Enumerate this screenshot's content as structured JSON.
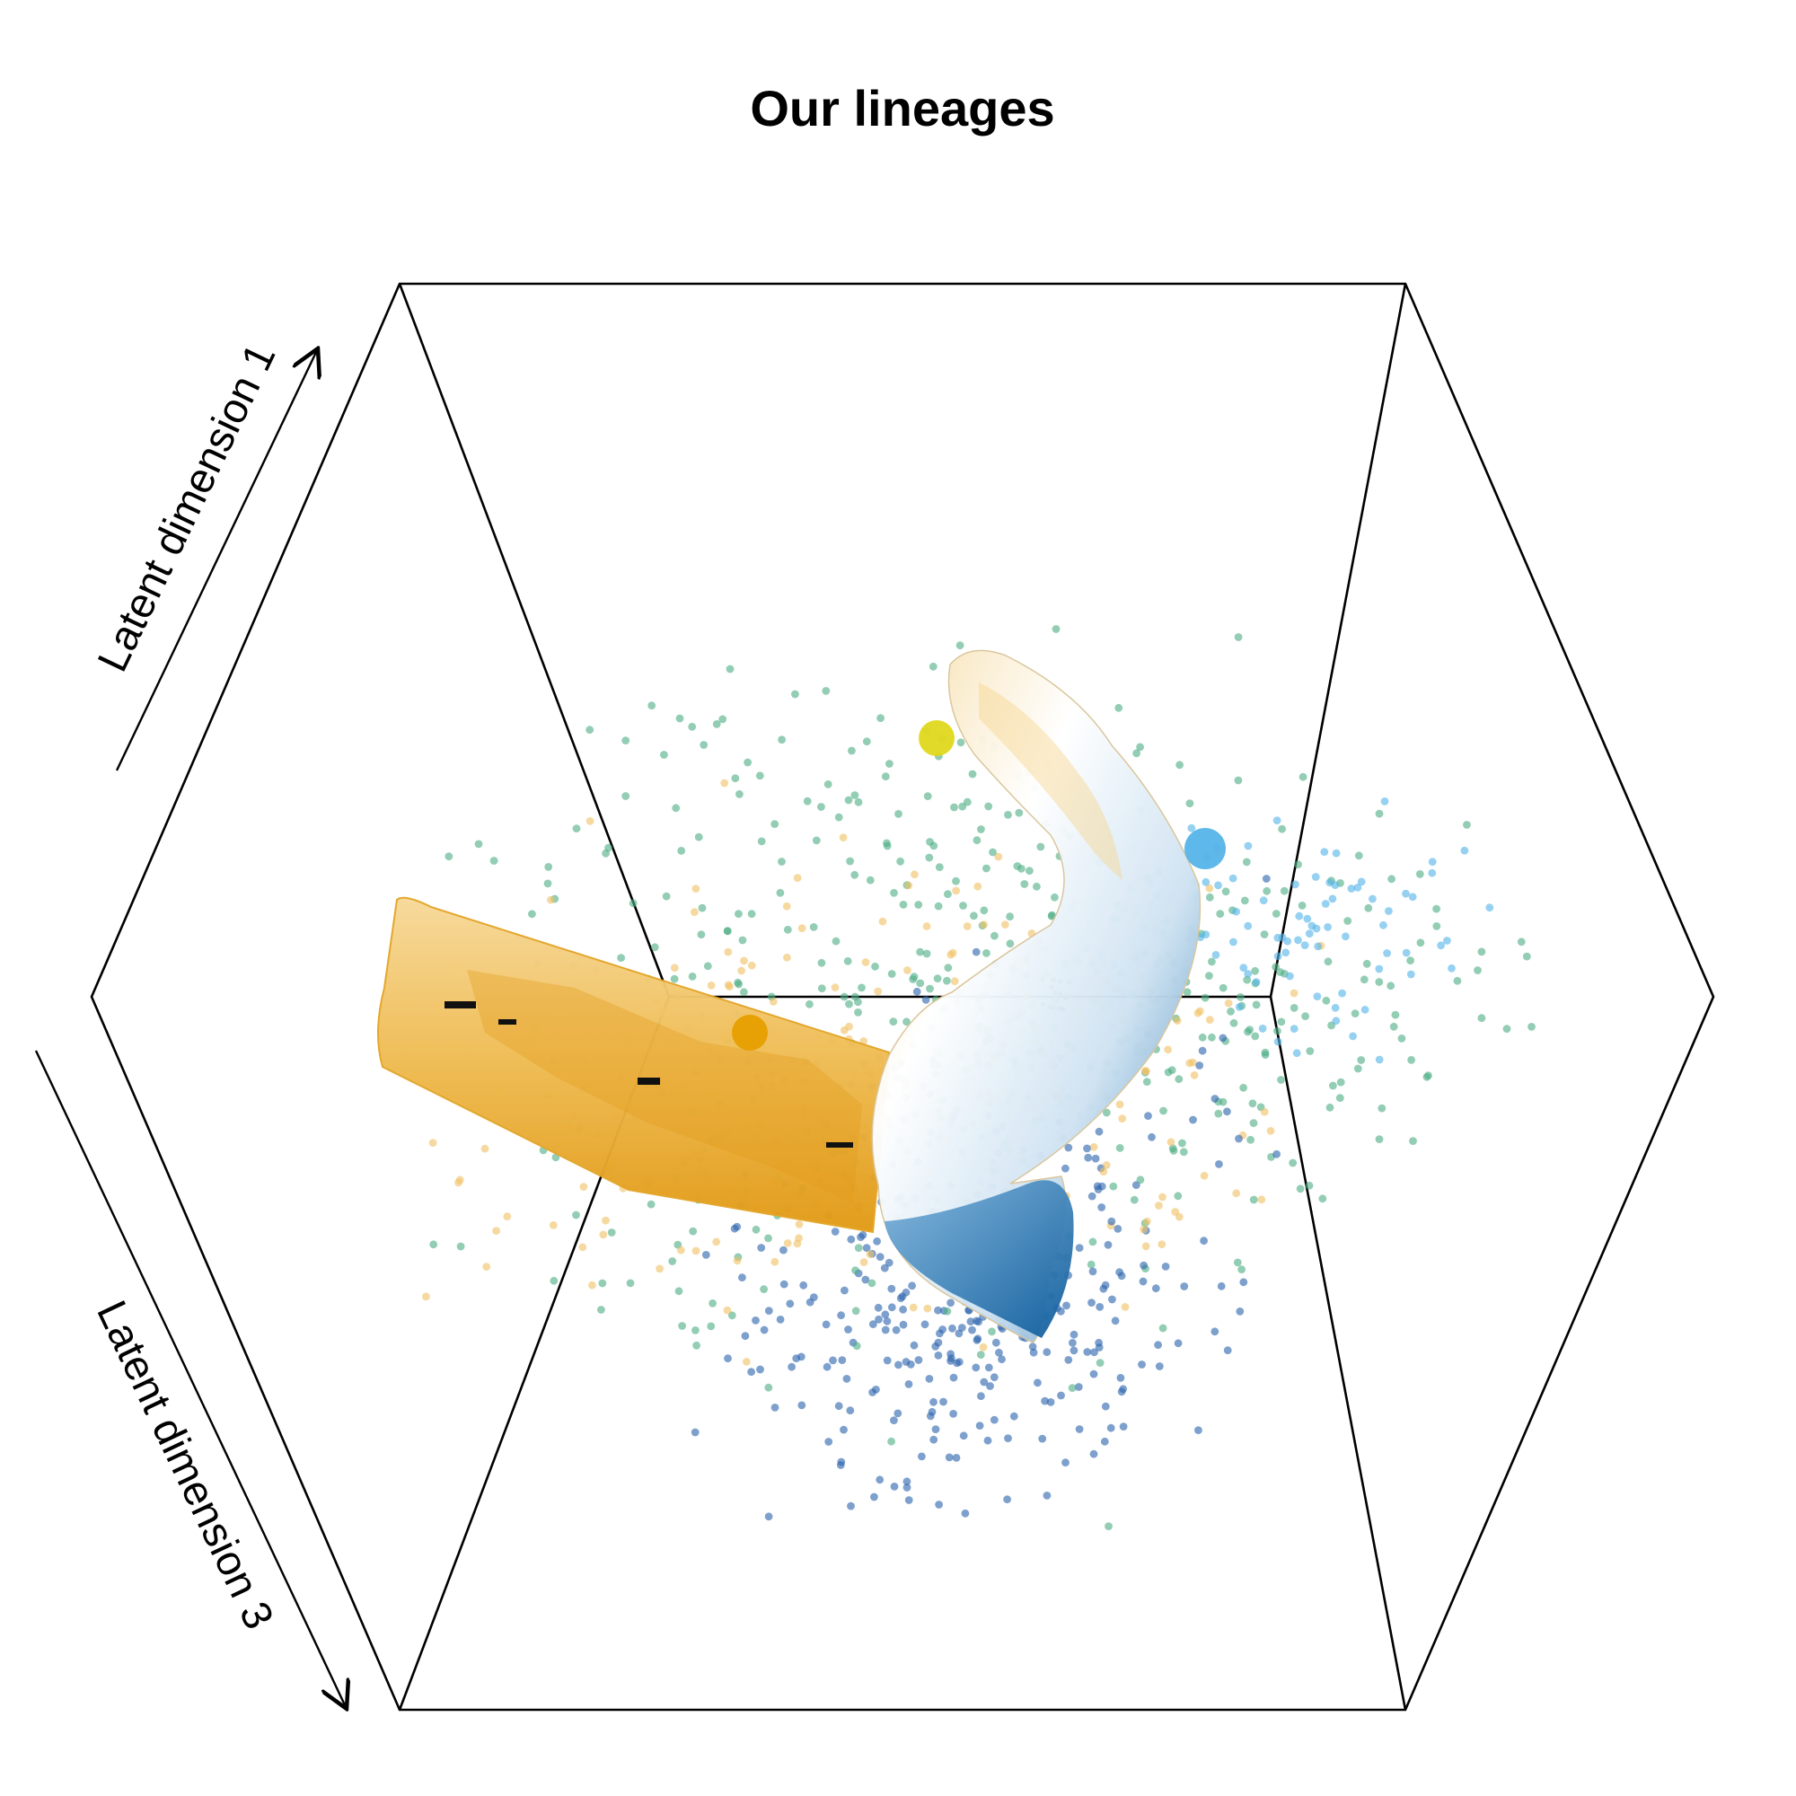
{
  "chart_data": {
    "type": "scatter",
    "projection": "3d",
    "title": "Our lineages",
    "axes": {
      "dim1_label": "Latent dimension 1",
      "dim3_label": "Latent dimension 3"
    },
    "grid": false,
    "legend": "none",
    "series_colors": {
      "orange": "#E69F00",
      "light_orange": "#F0C266",
      "green": "#4FAF86",
      "blue": "#2F66AE",
      "sky_blue": "#56B4E9",
      "yellow": "#E0D81C",
      "dark_green": "#0A7A4A"
    },
    "lineages": [
      {
        "name": "",
        "color": "#E69F00",
        "shape": "tube"
      },
      {
        "name": "",
        "color": "#56B4E9",
        "shape": "tube"
      }
    ],
    "cluster_centers": [
      {
        "color": "#E0D81C"
      },
      {
        "color": "#56B4E9"
      },
      {
        "color": "#E69F00"
      }
    ]
  }
}
